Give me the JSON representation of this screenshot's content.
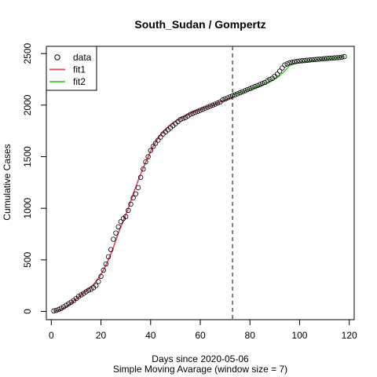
{
  "chart_data": {
    "type": "line",
    "title": "South_Sudan / Gompertz",
    "xlabel": "Days since 2020-05-06",
    "xlabel2": "Simple Moving Avarage (window size = 7)",
    "ylabel": "Cumulative Cases",
    "xlim": [
      -2,
      122
    ],
    "ylim": [
      -80,
      2570
    ],
    "x_ticks": [
      0,
      20,
      40,
      60,
      80,
      100,
      120
    ],
    "y_ticks": [
      0,
      500,
      1000,
      1500,
      2000,
      2500
    ],
    "vline_x": 73,
    "legend": {
      "placement": "top-left",
      "entries": [
        {
          "label": "data",
          "kind": "point",
          "color": "#000000"
        },
        {
          "label": "fit1",
          "kind": "line",
          "color": "#DF536B"
        },
        {
          "label": "fit2",
          "kind": "line",
          "color": "#61D04F"
        }
      ]
    },
    "series": [
      {
        "name": "data",
        "kind": "scatter",
        "color": "#000000",
        "x": [
          1,
          2,
          3,
          4,
          5,
          6,
          7,
          8,
          9,
          10,
          11,
          12,
          13,
          14,
          15,
          16,
          17,
          18,
          19,
          20,
          21,
          22,
          23,
          24,
          25,
          26,
          27,
          28,
          29,
          30,
          31,
          32,
          33,
          34,
          35,
          36,
          37,
          38,
          39,
          40,
          41,
          42,
          43,
          44,
          45,
          46,
          47,
          48,
          49,
          50,
          51,
          52,
          53,
          54,
          55,
          56,
          57,
          58,
          59,
          60,
          61,
          62,
          63,
          64,
          65,
          66,
          67,
          68,
          69,
          70,
          71,
          72,
          73,
          74,
          75,
          76,
          77,
          78,
          79,
          80,
          81,
          82,
          83,
          84,
          85,
          86,
          87,
          88,
          89,
          90,
          91,
          92,
          93,
          94,
          95,
          96,
          97,
          98,
          99,
          100,
          101,
          102,
          103,
          104,
          105,
          106,
          107,
          108,
          109,
          110,
          111,
          112,
          113,
          114,
          115,
          116,
          117,
          118
        ],
        "y": [
          5,
          10,
          20,
          30,
          45,
          60,
          75,
          90,
          105,
          125,
          145,
          160,
          175,
          190,
          205,
          215,
          230,
          250,
          290,
          340,
          400,
          460,
          530,
          600,
          700,
          760,
          820,
          870,
          900,
          920,
          980,
          1040,
          1100,
          1140,
          1200,
          1300,
          1380,
          1450,
          1500,
          1560,
          1600,
          1630,
          1660,
          1690,
          1720,
          1740,
          1760,
          1780,
          1800,
          1820,
          1840,
          1860,
          1870,
          1880,
          1895,
          1910,
          1920,
          1930,
          1940,
          1950,
          1960,
          1970,
          1980,
          1990,
          2000,
          2010,
          2020,
          2030,
          2050,
          2060,
          2070,
          2080,
          2090,
          2100,
          2110,
          2120,
          2130,
          2140,
          2150,
          2160,
          2170,
          2180,
          2190,
          2200,
          2210,
          2220,
          2235,
          2250,
          2260,
          2280,
          2300,
          2330,
          2360,
          2390,
          2400,
          2410,
          2415,
          2420,
          2425,
          2428,
          2430,
          2432,
          2435,
          2437,
          2440,
          2442,
          2444,
          2446,
          2448,
          2450,
          2452,
          2454,
          2456,
          2458,
          2460,
          2462,
          2465,
          2470
        ]
      },
      {
        "name": "fit1",
        "kind": "line",
        "color": "#DF536B",
        "x": [
          1,
          3,
          5,
          7,
          9,
          11,
          13,
          15,
          17,
          19,
          21,
          23,
          25,
          27,
          29,
          31,
          33,
          35,
          37,
          39,
          41,
          43,
          45,
          47,
          49,
          51,
          53,
          55,
          57,
          59,
          61,
          63,
          65,
          67,
          69,
          71,
          73
        ],
        "y": [
          2,
          10,
          30,
          60,
          100,
          140,
          180,
          220,
          260,
          320,
          400,
          500,
          620,
          760,
          880,
          1000,
          1140,
          1270,
          1390,
          1500,
          1600,
          1680,
          1740,
          1790,
          1830,
          1860,
          1885,
          1910,
          1930,
          1950,
          1965,
          1985,
          2000,
          2020,
          2040,
          2060,
          2080
        ]
      },
      {
        "name": "fit2",
        "kind": "line",
        "color": "#61D04F",
        "x": [
          73,
          76,
          79,
          82,
          85,
          88,
          91,
          94,
          96,
          98,
          100,
          103,
          106,
          109,
          112,
          115,
          118
        ],
        "y": [
          2100,
          2120,
          2145,
          2170,
          2195,
          2225,
          2265,
          2330,
          2385,
          2405,
          2415,
          2425,
          2435,
          2445,
          2450,
          2460,
          2470
        ]
      }
    ]
  }
}
